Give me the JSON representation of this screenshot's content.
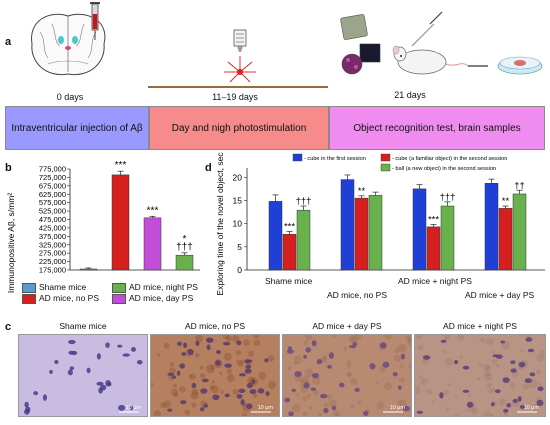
{
  "panel_labels": {
    "a": "a",
    "b": "b",
    "c": "c",
    "d": "d"
  },
  "timeline": {
    "days": [
      "0 days",
      "11–19 days",
      "21 days"
    ],
    "stages": [
      "Intraventricular injection of Aβ",
      "Day and nigh photostimulation",
      "Object recognition test, brain samples"
    ],
    "colors": [
      "#9a99ff",
      "#f78a8a",
      "#f08bf0"
    ]
  },
  "chart_data": [
    {
      "type": "bar",
      "panel": "b",
      "ylabel": "Immunopositive Aβ, s/mm²",
      "ylim": [
        175000,
        775000
      ],
      "yticks": [
        "175,000",
        "225,000",
        "275,000",
        "325,000",
        "375,000",
        "425,000",
        "475,000",
        "525,000",
        "575,000",
        "625,000",
        "675,000",
        "725,000",
        "775,000"
      ],
      "series": [
        {
          "name": "Shame mice",
          "value": 181000,
          "error": 6000,
          "color": "#5b9bd5",
          "annotation": ""
        },
        {
          "name": "AD mice, no PS",
          "value": 740000,
          "error": 22000,
          "color": "#d62020",
          "annotation": "***"
        },
        {
          "name": "AD mice, night PS",
          "value": 263000,
          "error": 14000,
          "color": "#6ab04c",
          "annotation": "*\n†††"
        },
        {
          "name": "AD mice, day PS",
          "value": 485000,
          "error": 9000,
          "color": "#c04ed8",
          "annotation": "***"
        }
      ],
      "bar_order": [
        "Shame mice",
        "AD mice, no PS",
        "AD mice, day PS",
        "AD mice, night PS"
      ],
      "legend": [
        "Shame mice",
        "AD mice, night PS",
        "AD mice, no PS",
        "AD mice, day PS"
      ]
    },
    {
      "type": "bar",
      "panel": "d",
      "ylabel": "Exploring time of the novel object, sec",
      "ylim": [
        0,
        22
      ],
      "yticks": [
        "0",
        "5",
        "10",
        "15",
        "20"
      ],
      "categories": [
        "Shame mice",
        "AD mice, no PS",
        "AD mice + night PS",
        "AD mice + day PS"
      ],
      "series": [
        {
          "name": "- cube in the first session",
          "values": [
            14.8,
            19.5,
            17.5,
            18.7
          ],
          "errors": [
            1.4,
            1.0,
            0.9,
            0.9
          ],
          "color": "#1f3fd6"
        },
        {
          "name": "- cube (a familiar object) in the second session",
          "values": [
            7.7,
            15.5,
            9.3,
            13.3
          ],
          "errors": [
            0.6,
            0.5,
            0.5,
            0.5
          ],
          "color": "#d62020"
        },
        {
          "name": "- ball (a new object) in the second session",
          "values": [
            12.9,
            16.1,
            13.8,
            16.4
          ],
          "errors": [
            0.9,
            0.7,
            0.9,
            0.8
          ],
          "color": "#6ab04c"
        }
      ],
      "annotations": [
        [
          "",
          "***",
          "†††"
        ],
        [
          "",
          "**",
          ""
        ],
        [
          "",
          "***",
          "†††"
        ],
        [
          "",
          "**",
          "††"
        ]
      ]
    }
  ],
  "micrographs": {
    "titles": [
      "Shame mice",
      "AD mice, no PS",
      "AD mice + day PS",
      "AD mice + night PS"
    ],
    "scale_label": "10 μm"
  }
}
